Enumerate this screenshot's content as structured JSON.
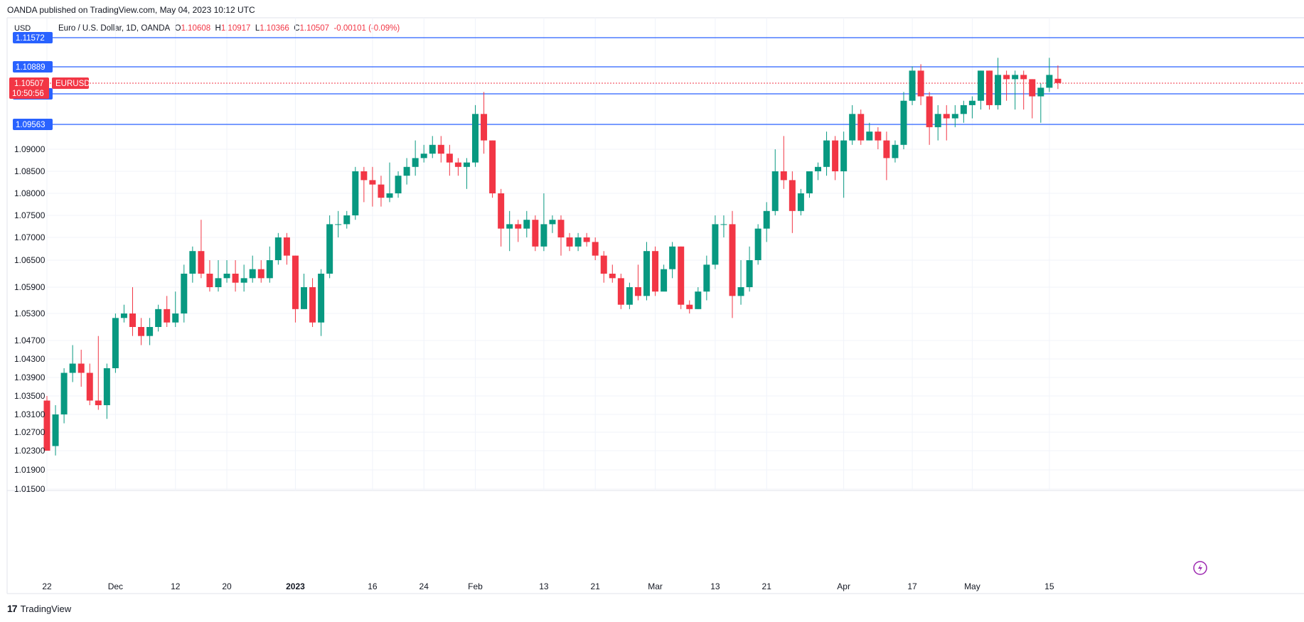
{
  "publisher_line": "OANDA published on TradingView.com, May 04, 2023 10:12 UTC",
  "currency": "USD",
  "legend": {
    "symbol": "Euro / U.S. Dollar, 1D, OANDA",
    "open_label": "O",
    "open": "1.10608",
    "high_label": "H",
    "high": "1.10917",
    "low_label": "L",
    "low": "1.10366",
    "close_label": "C",
    "close": "1.10507",
    "change": "-0.00101 (-0.09%)"
  },
  "footer": {
    "logo_glyph": "17",
    "brand": "TradingView"
  },
  "colors": {
    "up": "#089981",
    "down": "#f23645",
    "hline": "#2962ff",
    "price_tag": "#f23645"
  },
  "chart_data": {
    "type": "candlestick",
    "title": "Euro / U.S. Dollar, 1D, OANDA",
    "y_ticks": [
      "1.09000",
      "1.08500",
      "1.08000",
      "1.07500",
      "1.07000",
      "1.06500",
      "1.05900",
      "1.05300",
      "1.04700",
      "1.04300",
      "1.03900",
      "1.03500",
      "1.03100",
      "1.02700",
      "1.02300",
      "1.01900",
      "1.01500"
    ],
    "x_ticks": [
      "22",
      "Dec",
      "12",
      "20",
      "2023",
      "16",
      "24",
      "Feb",
      "13",
      "21",
      "Mar",
      "13",
      "21",
      "Apr",
      "17",
      "May",
      "15"
    ],
    "horizontal_levels": [
      "1.11572",
      "1.10889",
      "1.10257",
      "1.09563"
    ],
    "last_price": {
      "value": "1.10507",
      "symbol": "EURUSD",
      "countdown": "10:50:56"
    },
    "candles": [
      [
        1.034,
        1.023,
        1.035,
        1.023
      ],
      [
        1.024,
        1.031,
        1.033,
        1.022
      ],
      [
        1.031,
        1.04,
        1.041,
        1.029
      ],
      [
        1.04,
        1.042,
        1.046,
        1.038
      ],
      [
        1.042,
        1.04,
        1.045,
        1.037
      ],
      [
        1.04,
        1.034,
        1.042,
        1.033
      ],
      [
        1.034,
        1.033,
        1.048,
        1.032
      ],
      [
        1.033,
        1.041,
        1.042,
        1.03
      ],
      [
        1.041,
        1.052,
        1.053,
        1.04
      ],
      [
        1.052,
        1.053,
        1.055,
        1.051
      ],
      [
        1.053,
        1.05,
        1.059,
        1.048
      ],
      [
        1.05,
        1.048,
        1.052,
        1.046
      ],
      [
        1.048,
        1.05,
        1.052,
        1.046
      ],
      [
        1.05,
        1.054,
        1.055,
        1.049
      ],
      [
        1.054,
        1.051,
        1.057,
        1.05
      ],
      [
        1.051,
        1.053,
        1.058,
        1.05
      ],
      [
        1.053,
        1.062,
        1.064,
        1.051
      ],
      [
        1.062,
        1.067,
        1.068,
        1.06
      ],
      [
        1.067,
        1.062,
        1.074,
        1.061
      ],
      [
        1.062,
        1.059,
        1.065,
        1.058
      ],
      [
        1.059,
        1.061,
        1.065,
        1.058
      ],
      [
        1.061,
        1.062,
        1.065,
        1.06
      ],
      [
        1.062,
        1.06,
        1.065,
        1.058
      ],
      [
        1.06,
        1.061,
        1.064,
        1.058
      ],
      [
        1.061,
        1.063,
        1.066,
        1.06
      ],
      [
        1.063,
        1.061,
        1.065,
        1.06
      ],
      [
        1.061,
        1.065,
        1.068,
        1.06
      ],
      [
        1.065,
        1.07,
        1.071,
        1.064
      ],
      [
        1.07,
        1.066,
        1.071,
        1.064
      ],
      [
        1.066,
        1.054,
        1.066,
        1.051
      ],
      [
        1.054,
        1.059,
        1.062,
        1.054
      ],
      [
        1.059,
        1.051,
        1.061,
        1.05
      ],
      [
        1.051,
        1.062,
        1.063,
        1.048
      ],
      [
        1.062,
        1.073,
        1.075,
        1.061
      ],
      [
        1.073,
        1.073,
        1.076,
        1.07
      ],
      [
        1.073,
        1.075,
        1.076,
        1.072
      ],
      [
        1.075,
        1.085,
        1.086,
        1.074
      ],
      [
        1.085,
        1.083,
        1.086,
        1.078
      ],
      [
        1.083,
        1.082,
        1.086,
        1.077
      ],
      [
        1.082,
        1.079,
        1.084,
        1.077
      ],
      [
        1.079,
        1.08,
        1.087,
        1.078
      ],
      [
        1.08,
        1.084,
        1.085,
        1.079
      ],
      [
        1.084,
        1.086,
        1.088,
        1.082
      ],
      [
        1.086,
        1.088,
        1.092,
        1.084
      ],
      [
        1.088,
        1.089,
        1.091,
        1.087
      ],
      [
        1.089,
        1.091,
        1.093,
        1.088
      ],
      [
        1.091,
        1.089,
        1.093,
        1.087
      ],
      [
        1.089,
        1.087,
        1.091,
        1.084
      ],
      [
        1.087,
        1.086,
        1.088,
        1.084
      ],
      [
        1.086,
        1.087,
        1.088,
        1.081
      ],
      [
        1.087,
        1.098,
        1.1,
        1.086
      ],
      [
        1.098,
        1.092,
        1.103,
        1.089
      ],
      [
        1.092,
        1.08,
        1.092,
        1.079
      ],
      [
        1.08,
        1.072,
        1.081,
        1.068
      ],
      [
        1.072,
        1.073,
        1.076,
        1.067
      ],
      [
        1.073,
        1.072,
        1.074,
        1.069
      ],
      [
        1.072,
        1.074,
        1.076,
        1.07
      ],
      [
        1.074,
        1.068,
        1.075,
        1.067
      ],
      [
        1.068,
        1.073,
        1.08,
        1.067
      ],
      [
        1.073,
        1.074,
        1.075,
        1.071
      ],
      [
        1.074,
        1.07,
        1.075,
        1.066
      ],
      [
        1.07,
        1.068,
        1.071,
        1.067
      ],
      [
        1.068,
        1.07,
        1.071,
        1.067
      ],
      [
        1.07,
        1.069,
        1.071,
        1.068
      ],
      [
        1.069,
        1.066,
        1.07,
        1.065
      ],
      [
        1.066,
        1.062,
        1.067,
        1.06
      ],
      [
        1.062,
        1.061,
        1.064,
        1.06
      ],
      [
        1.061,
        1.055,
        1.062,
        1.054
      ],
      [
        1.055,
        1.059,
        1.06,
        1.054
      ],
      [
        1.059,
        1.057,
        1.064,
        1.056
      ],
      [
        1.057,
        1.067,
        1.069,
        1.056
      ],
      [
        1.067,
        1.058,
        1.068,
        1.057
      ],
      [
        1.058,
        1.063,
        1.064,
        1.059
      ],
      [
        1.063,
        1.068,
        1.069,
        1.061
      ],
      [
        1.068,
        1.055,
        1.068,
        1.054
      ],
      [
        1.055,
        1.054,
        1.056,
        1.053
      ],
      [
        1.054,
        1.058,
        1.059,
        1.054
      ],
      [
        1.058,
        1.064,
        1.066,
        1.056
      ],
      [
        1.064,
        1.073,
        1.075,
        1.063
      ],
      [
        1.073,
        1.073,
        1.075,
        1.07
      ],
      [
        1.073,
        1.057,
        1.076,
        1.052
      ],
      [
        1.057,
        1.059,
        1.065,
        1.055
      ],
      [
        1.059,
        1.065,
        1.068,
        1.058
      ],
      [
        1.065,
        1.072,
        1.073,
        1.064
      ],
      [
        1.072,
        1.076,
        1.078,
        1.069
      ],
      [
        1.076,
        1.085,
        1.09,
        1.075
      ],
      [
        1.085,
        1.083,
        1.093,
        1.081
      ],
      [
        1.083,
        1.076,
        1.085,
        1.071
      ],
      [
        1.076,
        1.08,
        1.081,
        1.075
      ],
      [
        1.08,
        1.085,
        1.085,
        1.079
      ],
      [
        1.085,
        1.086,
        1.087,
        1.083
      ],
      [
        1.086,
        1.092,
        1.094,
        1.084
      ],
      [
        1.092,
        1.085,
        1.093,
        1.083
      ],
      [
        1.085,
        1.092,
        1.094,
        1.079
      ],
      [
        1.092,
        1.098,
        1.1,
        1.091
      ],
      [
        1.098,
        1.092,
        1.099,
        1.091
      ],
      [
        1.092,
        1.094,
        1.096,
        1.092
      ],
      [
        1.094,
        1.092,
        1.095,
        1.09
      ],
      [
        1.092,
        1.088,
        1.094,
        1.083
      ],
      [
        1.088,
        1.091,
        1.092,
        1.087
      ],
      [
        1.091,
        1.101,
        1.103,
        1.09
      ],
      [
        1.101,
        1.108,
        1.109,
        1.1
      ],
      [
        1.108,
        1.102,
        1.1095,
        1.1
      ],
      [
        1.102,
        1.095,
        1.103,
        1.091
      ],
      [
        1.095,
        1.098,
        1.1,
        1.092
      ],
      [
        1.098,
        1.097,
        1.1,
        1.092
      ],
      [
        1.097,
        1.098,
        1.1,
        1.095
      ],
      [
        1.098,
        1.1,
        1.101,
        1.096
      ],
      [
        1.1,
        1.101,
        1.102,
        1.097
      ],
      [
        1.101,
        1.108,
        1.108,
        1.099
      ],
      [
        1.108,
        1.1,
        1.108,
        1.099
      ],
      [
        1.1,
        1.107,
        1.111,
        1.099
      ],
      [
        1.107,
        1.106,
        1.108,
        1.101
      ],
      [
        1.106,
        1.107,
        1.108,
        1.099
      ],
      [
        1.107,
        1.106,
        1.108,
        1.099
      ],
      [
        1.106,
        1.102,
        1.106,
        1.097
      ],
      [
        1.102,
        1.104,
        1.105,
        1.096
      ],
      [
        1.104,
        1.107,
        1.111,
        1.103
      ],
      [
        1.1061,
        1.1051,
        1.1092,
        1.1037
      ]
    ]
  }
}
